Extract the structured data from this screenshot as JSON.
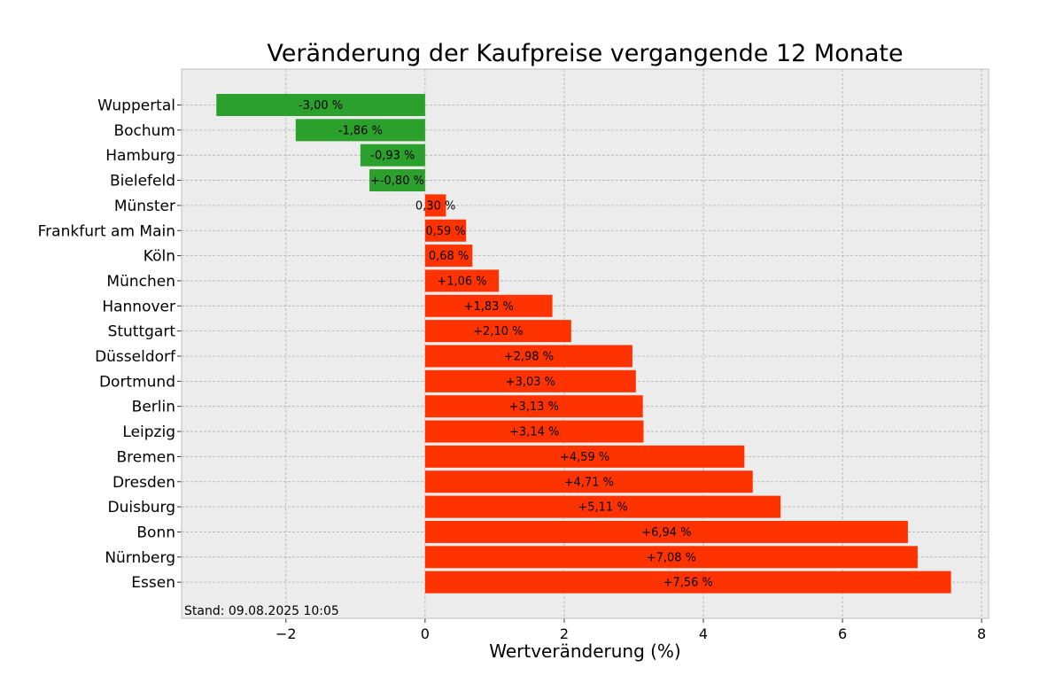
{
  "chart_data": {
    "type": "bar",
    "orientation": "horizontal",
    "title": "Veränderung der Kaufpreise vergangende 12 Monate",
    "xlabel": "Wertveränderung (%)",
    "ylabel": "",
    "xlim": [
      -3.5,
      8.1
    ],
    "xticks": [
      -2,
      0,
      2,
      4,
      6,
      8
    ],
    "xtick_labels": [
      "−2",
      "0",
      "2",
      "4",
      "6",
      "8"
    ],
    "grid": true,
    "footnote": "Stand: 09.08.2025 10:05",
    "colors": {
      "negative": "#2ca02c",
      "positive": "#ff3300",
      "background": "#ececec"
    },
    "categories": [
      "Wuppertal",
      "Bochum",
      "Hamburg",
      "Bielefeld",
      "Münster",
      "Frankfurt am Main",
      "Köln",
      "München",
      "Hannover",
      "Stuttgart",
      "Düsseldorf",
      "Dortmund",
      "Berlin",
      "Leipzig",
      "Bremen",
      "Dresden",
      "Duisburg",
      "Bonn",
      "Nürnberg",
      "Essen"
    ],
    "values": [
      -3.0,
      -1.86,
      -0.93,
      -0.8,
      0.3,
      0.59,
      0.68,
      1.06,
      1.83,
      2.1,
      2.98,
      3.03,
      3.13,
      3.14,
      4.59,
      4.71,
      5.11,
      6.94,
      7.08,
      7.56
    ],
    "value_labels": [
      "-3,00 %",
      "-1,86 %",
      "-0,93 %",
      "+-0,80 %",
      "0,30 %",
      "0,59 %",
      "0,68 %",
      "+1,06 %",
      "+1,83 %",
      "+2,10 %",
      "+2,98 %",
      "+3,03 %",
      "+3,13 %",
      "+3,14 %",
      "+4,59 %",
      "+4,71 %",
      "+5,11 %",
      "+6,94 %",
      "+7,08 %",
      "+7,56 %"
    ]
  }
}
